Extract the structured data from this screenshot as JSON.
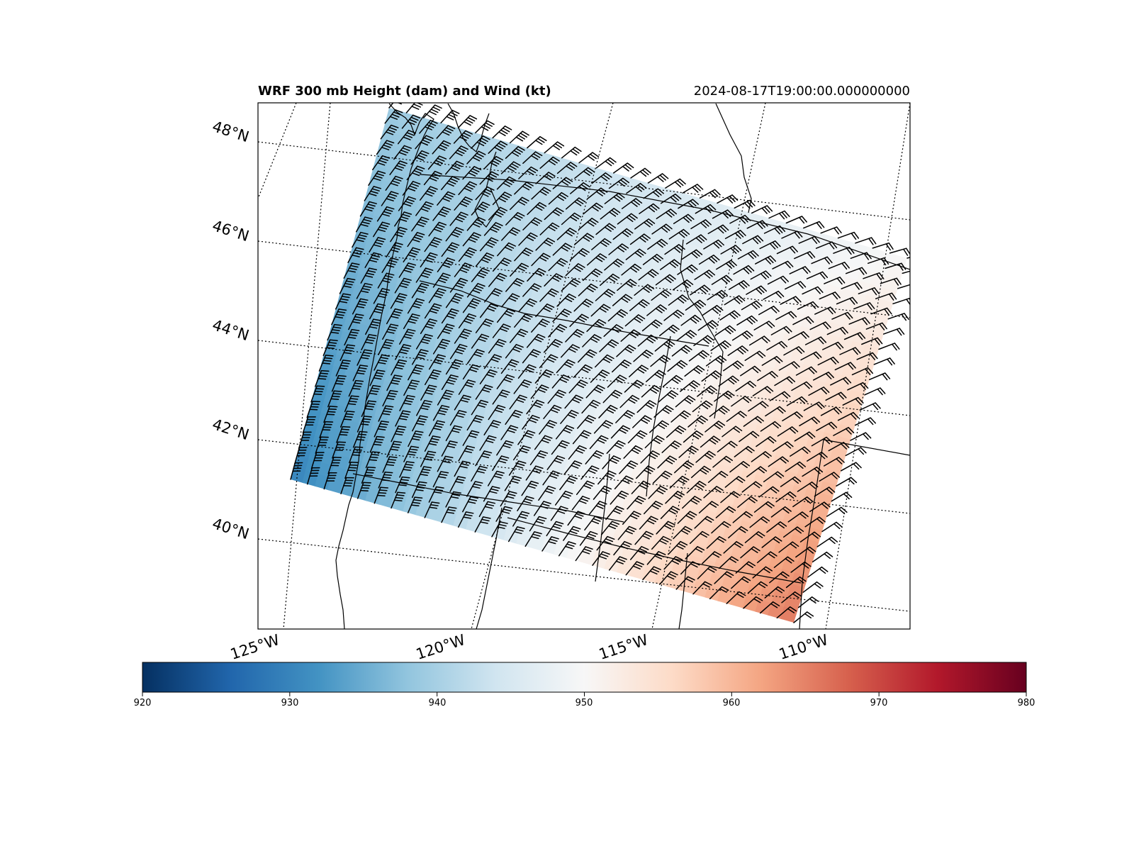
{
  "title": "WRF 300 mb Height (dam) and Wind (kt)",
  "valid_time": "2024-08-17T19:00:00.000000000",
  "lat_labels": [
    "48°N",
    "46°N",
    "44°N",
    "42°N",
    "40°N"
  ],
  "lon_labels": [
    "125°W",
    "120°W",
    "115°W",
    "110°W"
  ],
  "colorbar": {
    "colormap": "RdBu_r",
    "min": 920,
    "max": 980,
    "tick_labels": [
      "920",
      "930",
      "940",
      "950",
      "960",
      "970",
      "980"
    ],
    "colors": [
      "#053061",
      "#2166ac",
      "#4393c3",
      "#92c5de",
      "#d1e5f0",
      "#f7f7f7",
      "#fddbc7",
      "#f4a582",
      "#d6604d",
      "#b2182b",
      "#67001f"
    ]
  },
  "chart_data": {
    "type": "heatmap",
    "field": "300 mb geopotential height",
    "units": "dam",
    "value_range": [
      920,
      980
    ],
    "domain_corner_heights": {
      "northwest": 939,
      "northeast": 950,
      "southwest": 930,
      "southeast": 966
    },
    "wind": {
      "units": "kt",
      "direction_deg_from": "southwest",
      "speed_range": [
        25,
        50
      ]
    }
  }
}
